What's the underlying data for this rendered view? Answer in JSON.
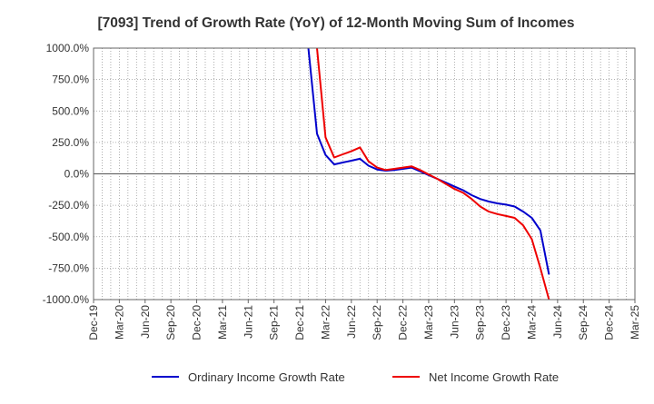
{
  "chart_data": {
    "type": "line",
    "title": "[7093]  Trend of Growth Rate (YoY) of 12-Month Moving Sum of Incomes",
    "xlabel": "",
    "ylabel": "",
    "x_tick_labels": [
      "Dec-19",
      "Mar-20",
      "Jun-20",
      "Sep-20",
      "Dec-20",
      "Mar-21",
      "Jun-21",
      "Sep-21",
      "Dec-21",
      "Mar-22",
      "Jun-22",
      "Sep-22",
      "Dec-22",
      "Mar-23",
      "Jun-23",
      "Sep-23",
      "Dec-23",
      "Mar-24",
      "Jun-24",
      "Sep-24",
      "Dec-24",
      "Mar-25"
    ],
    "xlim": [
      "2019-12",
      "2025-03"
    ],
    "y_tick_labels": [
      "1000.0%",
      "750.0%",
      "500.0%",
      "250.0%",
      "0.0%",
      "-250.0%",
      "-500.0%",
      "-750.0%",
      "-1000.0%"
    ],
    "ylim": [
      -1000,
      1000
    ],
    "grid": true,
    "legend_position": "bottom",
    "series": [
      {
        "name": "Ordinary Income Growth Rate",
        "color": "#0000cc",
        "points": [
          [
            "2022-01",
            1000
          ],
          [
            "2022-02",
            320
          ],
          [
            "2022-03",
            150
          ],
          [
            "2022-04",
            75
          ],
          [
            "2022-05",
            90
          ],
          [
            "2022-06",
            105
          ],
          [
            "2022-07",
            120
          ],
          [
            "2022-08",
            65
          ],
          [
            "2022-09",
            35
          ],
          [
            "2022-10",
            25
          ],
          [
            "2022-11",
            30
          ],
          [
            "2022-12",
            40
          ],
          [
            "2023-01",
            50
          ],
          [
            "2023-02",
            20
          ],
          [
            "2023-03",
            -10
          ],
          [
            "2023-04",
            -40
          ],
          [
            "2023-05",
            -70
          ],
          [
            "2023-06",
            -100
          ],
          [
            "2023-07",
            -130
          ],
          [
            "2023-08",
            -170
          ],
          [
            "2023-09",
            -200
          ],
          [
            "2023-10",
            -220
          ],
          [
            "2023-11",
            -235
          ],
          [
            "2023-12",
            -245
          ],
          [
            "2024-01",
            -260
          ],
          [
            "2024-02",
            -300
          ],
          [
            "2024-03",
            -350
          ],
          [
            "2024-04",
            -450
          ],
          [
            "2024-05",
            -800
          ]
        ]
      },
      {
        "name": "Net Income Growth Rate",
        "color": "#ee0000",
        "points": [
          [
            "2022-02",
            1000
          ],
          [
            "2022-03",
            290
          ],
          [
            "2022-04",
            130
          ],
          [
            "2022-05",
            155
          ],
          [
            "2022-06",
            180
          ],
          [
            "2022-07",
            210
          ],
          [
            "2022-08",
            100
          ],
          [
            "2022-09",
            50
          ],
          [
            "2022-10",
            30
          ],
          [
            "2022-11",
            40
          ],
          [
            "2022-12",
            50
          ],
          [
            "2023-01",
            60
          ],
          [
            "2023-02",
            30
          ],
          [
            "2023-03",
            -5
          ],
          [
            "2023-04",
            -40
          ],
          [
            "2023-05",
            -80
          ],
          [
            "2023-06",
            -120
          ],
          [
            "2023-07",
            -150
          ],
          [
            "2023-08",
            -200
          ],
          [
            "2023-09",
            -260
          ],
          [
            "2023-10",
            -300
          ],
          [
            "2023-11",
            -320
          ],
          [
            "2023-12",
            -335
          ],
          [
            "2024-01",
            -350
          ],
          [
            "2024-02",
            -410
          ],
          [
            "2024-03",
            -520
          ],
          [
            "2024-04",
            -750
          ],
          [
            "2024-05",
            -1000
          ]
        ]
      }
    ]
  }
}
